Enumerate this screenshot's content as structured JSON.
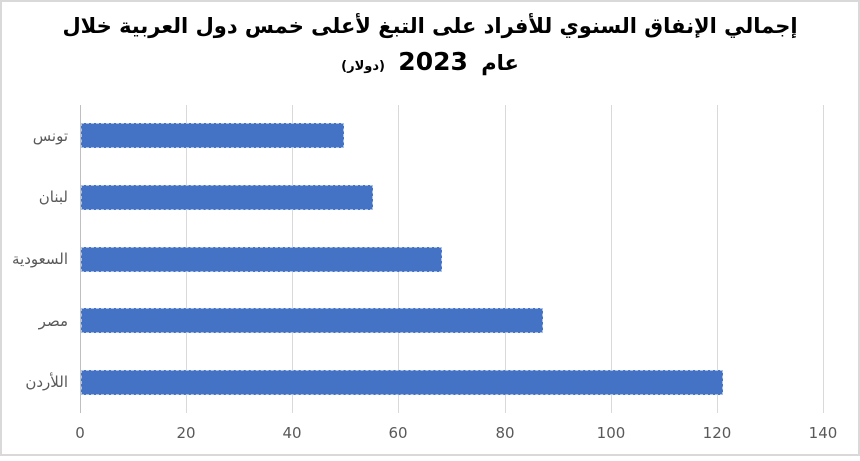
{
  "title": {
    "line1": "إجمالي الإنفاق السنوي للأفراد على التبغ لأعلى خمس دول العربية خلال",
    "line2_prefix": "عام",
    "line2_year": "2023",
    "line2_unit": "(دولار)"
  },
  "colors": {
    "bar": "#4472C4",
    "gridline": "#D9D9D9",
    "axis_line": "#BFBFBF",
    "tick_label": "#595959",
    "title": "#000000",
    "chart_border": "#D9D9D9",
    "background": "#FFFFFF"
  },
  "chart_data": {
    "type": "bar",
    "orientation": "horizontal",
    "title": "إجمالي الإنفاق السنوي للأفراد على التبغ لأعلى خمس دول العربية خلال عام 2023 (دولار)",
    "categories": [
      "تونس",
      "لبنان",
      "السعودية",
      "مصر",
      "اللأردن"
    ],
    "values": [
      49.5,
      55,
      68,
      87,
      121
    ],
    "xlabel": "",
    "ylabel": "",
    "xlim": [
      0,
      140
    ],
    "xticks": [
      0,
      20,
      40,
      60,
      80,
      100,
      120,
      140
    ],
    "grid": true,
    "legend": "none",
    "bar_color": "#4472C4"
  }
}
